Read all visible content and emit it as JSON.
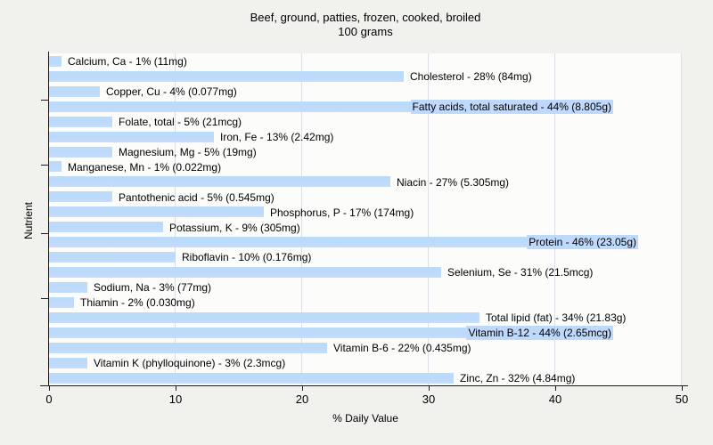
{
  "title": {
    "line1": "Beef, ground, patties, frozen, cooked, broiled",
    "line2": "100 grams"
  },
  "colors": {
    "bar": "#bed9fb",
    "page_background": "#f1f1ee",
    "plot_background": "#fcfcfb",
    "gridline": "#dcdfe3",
    "axis": "#1c1c1c",
    "text": "#000000"
  },
  "chart_data": {
    "type": "bar",
    "orientation": "horizontal",
    "title": "Beef, ground, patties, frozen, cooked, broiled",
    "subtitle": "100 grams",
    "xlabel": "% Daily Value",
    "ylabel": "Nutrient",
    "xlim": [
      0,
      50
    ],
    "xticks": [
      0,
      10,
      20,
      30,
      40,
      50
    ],
    "grid": "vertical",
    "legend": "none",
    "categories": [
      "Calcium, Ca",
      "Cholesterol",
      "Copper, Cu",
      "Fatty acids, total saturated",
      "Folate, total",
      "Iron, Fe",
      "Magnesium, Mg",
      "Manganese, Mn",
      "Niacin",
      "Pantothenic acid",
      "Phosphorus, P",
      "Potassium, K",
      "Protein",
      "Riboflavin",
      "Selenium, Se",
      "Sodium, Na",
      "Thiamin",
      "Total lipid (fat)",
      "Vitamin B-12",
      "Vitamin B-6",
      "Vitamin K (phylloquinone)",
      "Zinc, Zn"
    ],
    "values": [
      1,
      28,
      4,
      44,
      5,
      13,
      5,
      1,
      27,
      5,
      17,
      9,
      46,
      10,
      31,
      3,
      2,
      34,
      44,
      22,
      3,
      32
    ],
    "amounts": [
      "11mg",
      "84mg",
      "0.077mg",
      "8.805g",
      "21mcg",
      "2.42mg",
      "19mg",
      "0.022mg",
      "5.305mg",
      "0.545mg",
      "174mg",
      "305mg",
      "23.05g",
      "0.176mg",
      "21.5mcg",
      "77mg",
      "0.030mg",
      "21.83g",
      "2.65mcg",
      "0.435mg",
      "2.3mcg",
      "4.84mg"
    ],
    "bar_labels": [
      "Calcium, Ca - 1% (11mg)",
      "Cholesterol - 28% (84mg)",
      "Copper, Cu - 4% (0.077mg)",
      "Fatty acids, total saturated - 44% (8.805g)",
      "Folate, total - 5% (21mcg)",
      "Iron, Fe - 13% (2.42mg)",
      "Magnesium, Mg - 5% (19mg)",
      "Manganese, Mn - 1% (0.022mg)",
      "Niacin - 27% (5.305mg)",
      "Pantothenic acid - 5% (0.545mg)",
      "Phosphorus, P - 17% (174mg)",
      "Potassium, K - 9% (305mg)",
      "Protein - 46% (23.05g)",
      "Riboflavin - 10% (0.176mg)",
      "Selenium, Se - 31% (21.5mcg)",
      "Sodium, Na - 3% (77mg)",
      "Thiamin - 2% (0.030mg)",
      "Total lipid (fat) - 34% (21.83g)",
      "Vitamin B-12 - 44% (2.65mcg)",
      "Vitamin B-6 - 22% (0.435mg)",
      "Vitamin K (phylloquinone) - 3% (2.3mcg)",
      "Zinc, Zn - 32% (4.84mg)"
    ]
  }
}
